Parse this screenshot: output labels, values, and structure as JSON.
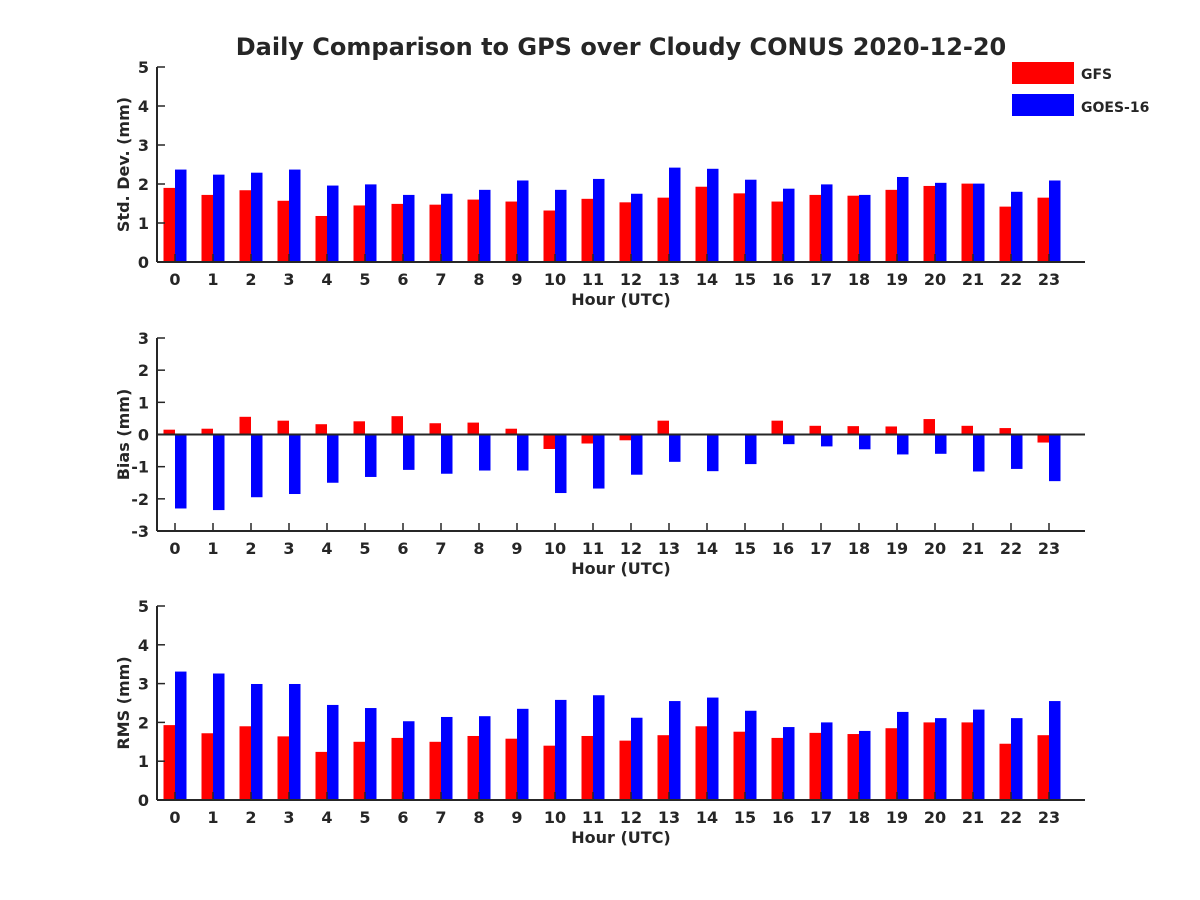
{
  "figure": {
    "title": "Daily Comparison to GPS over Cloudy CONUS 2020-12-20"
  },
  "legend": {
    "items": [
      {
        "label": "GFS",
        "color": "#ff0000"
      },
      {
        "label": "GOES-16",
        "color": "#0000ff"
      }
    ]
  },
  "colors": {
    "gfs": "#ff0000",
    "goes": "#0000ff",
    "axis": "#262626"
  },
  "chart_data": [
    {
      "type": "bar",
      "ylabel": "Std. Dev. (mm)",
      "xlabel": "Hour (UTC)",
      "ylim": [
        0,
        5
      ],
      "yticks": [
        0,
        1,
        2,
        3,
        4,
        5
      ],
      "categories": [
        "0",
        "1",
        "2",
        "3",
        "4",
        "5",
        "6",
        "7",
        "8",
        "9",
        "10",
        "11",
        "12",
        "13",
        "14",
        "15",
        "16",
        "17",
        "18",
        "19",
        "20",
        "21",
        "22",
        "23"
      ],
      "series": [
        {
          "name": "GFS",
          "values": [
            1.9,
            1.72,
            1.84,
            1.57,
            1.18,
            1.45,
            1.49,
            1.47,
            1.6,
            1.55,
            1.32,
            1.62,
            1.53,
            1.65,
            1.93,
            1.76,
            1.55,
            1.72,
            1.7,
            1.85,
            1.95,
            2.01,
            1.42,
            1.65
          ]
        },
        {
          "name": "GOES-16",
          "values": [
            2.37,
            2.24,
            2.29,
            2.37,
            1.96,
            1.99,
            1.72,
            1.75,
            1.85,
            2.09,
            1.85,
            2.13,
            1.75,
            2.42,
            2.39,
            2.11,
            1.88,
            1.99,
            1.72,
            2.18,
            2.03,
            2.01,
            1.8,
            2.09
          ]
        }
      ]
    },
    {
      "type": "bar",
      "ylabel": "Bias (mm)",
      "xlabel": "Hour (UTC)",
      "ylim": [
        -3,
        3
      ],
      "yticks": [
        -3,
        -2,
        -1,
        0,
        1,
        2,
        3
      ],
      "zero_line": true,
      "categories": [
        "0",
        "1",
        "2",
        "3",
        "4",
        "5",
        "6",
        "7",
        "8",
        "9",
        "10",
        "11",
        "12",
        "13",
        "14",
        "15",
        "16",
        "17",
        "18",
        "19",
        "20",
        "21",
        "22",
        "23"
      ],
      "series": [
        {
          "name": "GFS",
          "values": [
            0.15,
            0.18,
            0.55,
            0.43,
            0.32,
            0.41,
            0.57,
            0.35,
            0.37,
            0.18,
            -0.45,
            -0.28,
            -0.18,
            0.43,
            0.0,
            0.0,
            0.43,
            0.27,
            0.26,
            0.25,
            0.48,
            0.27,
            0.2,
            -0.25
          ]
        },
        {
          "name": "GOES-16",
          "values": [
            -2.3,
            -2.35,
            -1.95,
            -1.85,
            -1.5,
            -1.32,
            -1.1,
            -1.22,
            -1.12,
            -1.12,
            -1.82,
            -1.68,
            -1.25,
            -0.85,
            -1.14,
            -0.92,
            -0.3,
            -0.37,
            -0.46,
            -0.62,
            -0.6,
            -1.15,
            -1.07,
            -1.45
          ]
        }
      ]
    },
    {
      "type": "bar",
      "ylabel": "RMS (mm)",
      "xlabel": "Hour (UTC)",
      "ylim": [
        0,
        5
      ],
      "yticks": [
        0,
        1,
        2,
        3,
        4,
        5
      ],
      "categories": [
        "0",
        "1",
        "2",
        "3",
        "4",
        "5",
        "6",
        "7",
        "8",
        "9",
        "10",
        "11",
        "12",
        "13",
        "14",
        "15",
        "16",
        "17",
        "18",
        "19",
        "20",
        "21",
        "22",
        "23"
      ],
      "series": [
        {
          "name": "GFS",
          "values": [
            1.93,
            1.72,
            1.9,
            1.64,
            1.24,
            1.5,
            1.6,
            1.5,
            1.65,
            1.58,
            1.4,
            1.65,
            1.53,
            1.67,
            1.9,
            1.76,
            1.6,
            1.73,
            1.7,
            1.85,
            2.0,
            2.0,
            1.45,
            1.67
          ]
        },
        {
          "name": "GOES-16",
          "values": [
            3.31,
            3.26,
            2.99,
            2.99,
            2.45,
            2.37,
            2.03,
            2.14,
            2.16,
            2.35,
            2.58,
            2.7,
            2.12,
            2.55,
            2.64,
            2.3,
            1.88,
            2.0,
            1.78,
            2.27,
            2.11,
            2.33,
            2.11,
            2.55
          ]
        }
      ]
    }
  ]
}
